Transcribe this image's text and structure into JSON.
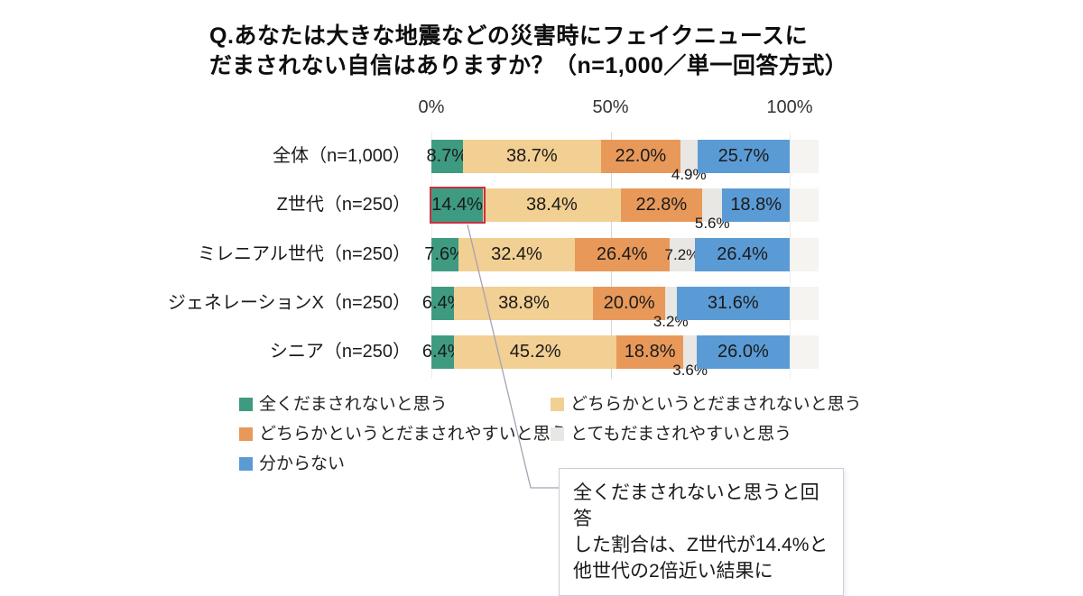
{
  "title": {
    "line1": "Q.あなたは大きな地震などの災害時にフェイクニュースに",
    "line2": "だまされない自信はありますか？（n=1,000／単一回答方式）"
  },
  "chart_data": {
    "type": "bar",
    "orientation": "horizontal-stacked",
    "title": "Q.あなたは大きな地震などの災害時にフェイクニュースにだまされない自信はありますか？（n=1,000／単一回答方式）",
    "unit": "%",
    "xlim": [
      0,
      100
    ],
    "x_ticks": [
      "0%",
      "50%",
      "100%"
    ],
    "grid": "vertical-at-50",
    "categories": [
      "全体（n=1,000）",
      "Z世代（n=250）",
      "ミレニアル世代（n=250）",
      "ジェネレーションX（n=250）",
      "シニア（n=250）"
    ],
    "series": [
      {
        "name": "全くだまされないと思う",
        "color": "#3e9b81",
        "values": [
          8.7,
          14.4,
          7.6,
          6.4,
          6.4
        ]
      },
      {
        "name": "どちらかというとだまされないと思う",
        "color": "#f2cf92",
        "values": [
          38.7,
          38.4,
          32.4,
          38.8,
          45.2
        ]
      },
      {
        "name": "どちらかというとだまされやすいと思う",
        "color": "#e8995a",
        "values": [
          22.0,
          22.8,
          26.4,
          20.0,
          18.8
        ]
      },
      {
        "name": "とてもだまされやすいと思う",
        "color": "#e8e7e4",
        "values": [
          4.9,
          5.6,
          7.2,
          3.2,
          3.6
        ]
      },
      {
        "name": "分からない",
        "color": "#5b9bd5",
        "values": [
          25.7,
          18.8,
          26.4,
          31.6,
          26.0
        ]
      }
    ],
    "legend_columns": [
      [
        0,
        2,
        4
      ],
      [
        1,
        3
      ]
    ],
    "gray_label_below_rows": [
      0,
      1,
      3,
      4
    ],
    "legend_position": "bottom-two-columns"
  },
  "highlight": {
    "row": 1,
    "series": 0,
    "color": "#cb2f44"
  },
  "annotation": {
    "text": "全くだまされないと思うと回答\nした割合は、Z世代が14.4%と\n他世代の2倍近い結果に"
  }
}
